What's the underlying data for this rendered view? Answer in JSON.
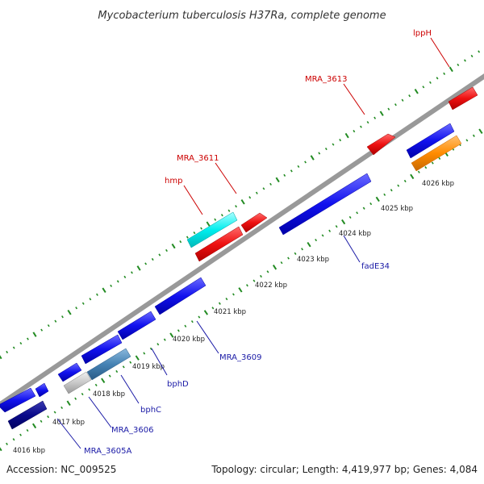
{
  "title": "Mycobacterium tuberculosis H37Ra, complete genome",
  "footer": {
    "accession": "Accession: NC_009525",
    "summary": "Topology: circular; Length: 4,419,977 bp; Genes: 4,084"
  },
  "kbp_ticks": [
    "4016 kbp",
    "4017 kbp",
    "4018 kbp",
    "4019 kbp",
    "4020 kbp",
    "4021 kbp",
    "4022 kbp",
    "4023 kbp",
    "4024 kbp",
    "4025 kbp",
    "4026 kbp"
  ],
  "gene_labels": [
    {
      "id": "lppH",
      "text": "lppH",
      "strand": "forward"
    },
    {
      "id": "MRA_3613",
      "text": "MRA_3613",
      "strand": "forward"
    },
    {
      "id": "MRA_3611",
      "text": "MRA_3611",
      "strand": "forward"
    },
    {
      "id": "hmp",
      "text": "hmp",
      "strand": "forward"
    },
    {
      "id": "fadE34",
      "text": "fadE34",
      "strand": "reverse"
    },
    {
      "id": "MRA_3609",
      "text": "MRA_3609",
      "strand": "reverse"
    },
    {
      "id": "bphD",
      "text": "bphD",
      "strand": "reverse"
    },
    {
      "id": "bphC",
      "text": "bphC",
      "strand": "reverse"
    },
    {
      "id": "MRA_3606",
      "text": "MRA_3606",
      "strand": "reverse"
    },
    {
      "id": "MRA_3605A",
      "text": "MRA_3605A",
      "strand": "reverse"
    }
  ],
  "colors": {
    "forward_gene": "#ee1111",
    "reverse_gene": "#1111ee",
    "cyan_gene": "#00eeee",
    "orange_gene": "#ff8c00",
    "steel_gene": "#4682b4",
    "navy_gene": "#0a0a8a",
    "grey_gene": "#c8c8c8",
    "backbone": "#999999",
    "tick_dots": "#228b22"
  }
}
